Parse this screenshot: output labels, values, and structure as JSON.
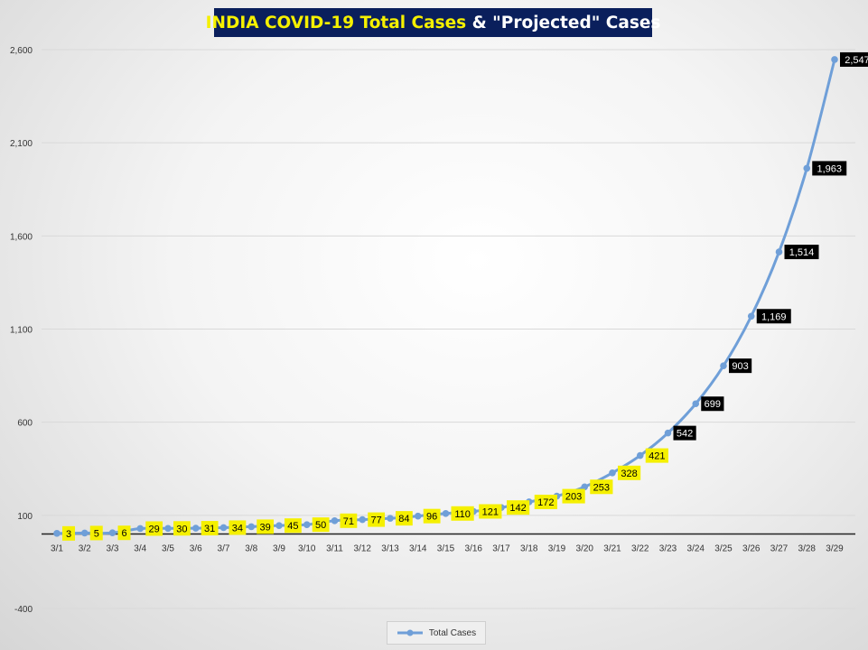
{
  "title": {
    "part1": "INDIA COVID-19 Total Cases",
    "part2": " & \"Projected\" Cases"
  },
  "legend": {
    "label": "Total Cases"
  },
  "colors": {
    "line": "#6f9fd8",
    "actual_label_bg": "#f5f000",
    "projected_label_bg": "#000000",
    "title_bg": "#0a1f5c",
    "title_highlight": "#f5f000"
  },
  "chart_data": {
    "type": "line",
    "title": "INDIA COVID-19 Total Cases & \"Projected\" Cases",
    "categories": [
      "3/1",
      "3/2",
      "3/3",
      "3/4",
      "3/5",
      "3/6",
      "3/7",
      "3/8",
      "3/9",
      "3/10",
      "3/11",
      "3/12",
      "3/13",
      "3/14",
      "3/15",
      "3/16",
      "3/17",
      "3/18",
      "3/19",
      "3/20",
      "3/21",
      "3/22",
      "3/23",
      "3/24",
      "3/25",
      "3/26",
      "3/27",
      "3/28",
      "3/29"
    ],
    "series": [
      {
        "name": "Total Cases",
        "values": [
          3,
          5,
          6,
          29,
          30,
          31,
          34,
          39,
          45,
          50,
          71,
          77,
          84,
          96,
          110,
          121,
          142,
          172,
          203,
          253,
          328,
          421,
          542,
          699,
          903,
          1169,
          1514,
          1963,
          2547
        ],
        "labels": [
          "3",
          "5",
          "6",
          "29",
          "30",
          "31",
          "34",
          "39",
          "45",
          "50",
          "71",
          "77",
          "84",
          "96",
          "110",
          "121",
          "142",
          "172",
          "203",
          "253",
          "328",
          "421",
          "542",
          "699",
          "903",
          "1,169",
          "1,514",
          "1,963",
          "2,547"
        ],
        "projected_from_index": 22
      }
    ],
    "yticks": [
      "2,600",
      "2,100",
      "1,600",
      "1,100",
      "600",
      "100",
      "-400"
    ],
    "ytick_values": [
      2600,
      2100,
      1600,
      1100,
      600,
      100,
      -400
    ],
    "ylim": [
      -400,
      2600
    ],
    "grid": true,
    "legend_position": "bottom"
  }
}
